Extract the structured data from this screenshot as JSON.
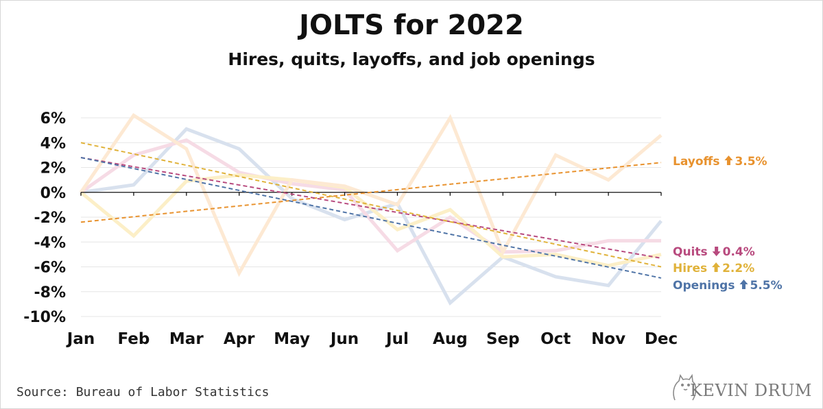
{
  "header": {
    "title": "JOLTS for 2022",
    "subtitle": "Hires, quits, layoffs, and job openings"
  },
  "footer": {
    "source": "Source: Bureau of Labor Statistics",
    "logo": "KEVIN DRUM"
  },
  "chart_data": {
    "type": "line",
    "categories": [
      "Jan",
      "Feb",
      "Mar",
      "Apr",
      "May",
      "Jun",
      "Jul",
      "Aug",
      "Sep",
      "Oct",
      "Nov",
      "Dec"
    ],
    "y_ticks": [
      6,
      4,
      2,
      0,
      -2,
      -4,
      -6,
      -8,
      -10
    ],
    "y_tick_labels": [
      "6%",
      "4%",
      "2%",
      "0%",
      "-2%",
      "-4%",
      "-6%",
      "-8%",
      "-10%"
    ],
    "ylim": [
      -10,
      6
    ],
    "grid": true,
    "series": [
      {
        "name": "Layoffs",
        "change_arrow": "up",
        "change": "3.5%",
        "color": "#e8922e",
        "faded_color": "#fde9d3",
        "values": [
          0,
          6.2,
          3.5,
          -6.5,
          1.0,
          0.5,
          -1.0,
          6.0,
          -4.8,
          3.0,
          1.0,
          4.6
        ],
        "trend": [
          -2.4,
          2.4
        ]
      },
      {
        "name": "Quits",
        "change_arrow": "down",
        "change": "0.4%",
        "color": "#b84a7e",
        "faded_color": "#f6dbe5",
        "values": [
          0,
          3.0,
          4.2,
          1.6,
          0.7,
          0.2,
          -4.7,
          -2.0,
          -4.8,
          -4.7,
          -3.9,
          -3.9
        ],
        "trend": [
          2.8,
          -5.3
        ]
      },
      {
        "name": "Hires",
        "change_arrow": "up",
        "change": "2.2%",
        "color": "#e0b23a",
        "faded_color": "#fcefc7",
        "values": [
          0,
          -3.5,
          0.9,
          1.4,
          1.0,
          0.4,
          -3.0,
          -1.4,
          -5.2,
          -5.0,
          -5.9,
          -5.0
        ],
        "trend": [
          4.0,
          -6.0
        ]
      },
      {
        "name": "Openings",
        "change_arrow": "up",
        "change": "5.5%",
        "color": "#4f74a7",
        "faded_color": "#d8e1ee",
        "values": [
          0,
          0.6,
          5.1,
          3.5,
          -0.5,
          -2.2,
          -0.9,
          -8.9,
          -5.2,
          -6.8,
          -7.5,
          -2.3
        ],
        "trend": [
          2.8,
          -6.9
        ]
      }
    ]
  }
}
